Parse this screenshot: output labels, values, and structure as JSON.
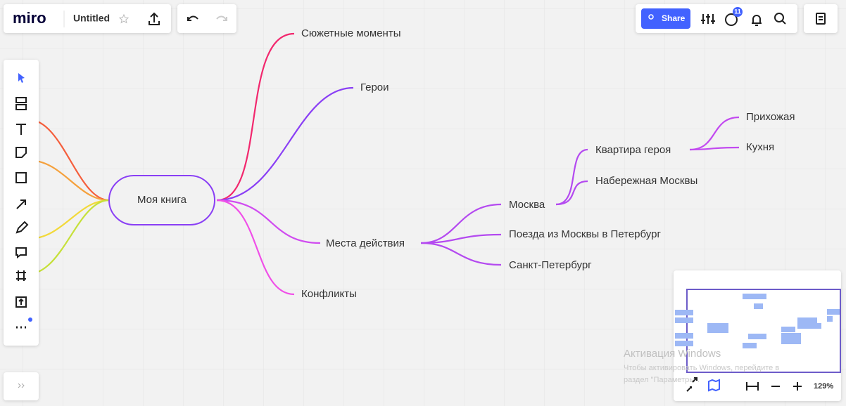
{
  "toolbar": {
    "logo": "miro",
    "board_title": "Untitled",
    "share": "Share",
    "notifications": "11",
    "zoom": "129%"
  },
  "mind_map": {
    "root": "Моя книга",
    "nodes": [
      "Сюжетные моменты",
      "Герои",
      "Места действия",
      "Конфликты",
      "Москва",
      "Поезда из Москвы в Петербург",
      "Санкт-Петербург",
      "Квартира героя",
      "Набережная Москвы",
      "Прихожая",
      "Кухня"
    ]
  },
  "watermark": {
    "title": "Активация Windows",
    "line1": "Чтобы активировать Windows, перейдите в",
    "line2": "раздел \"Параметры\"."
  }
}
